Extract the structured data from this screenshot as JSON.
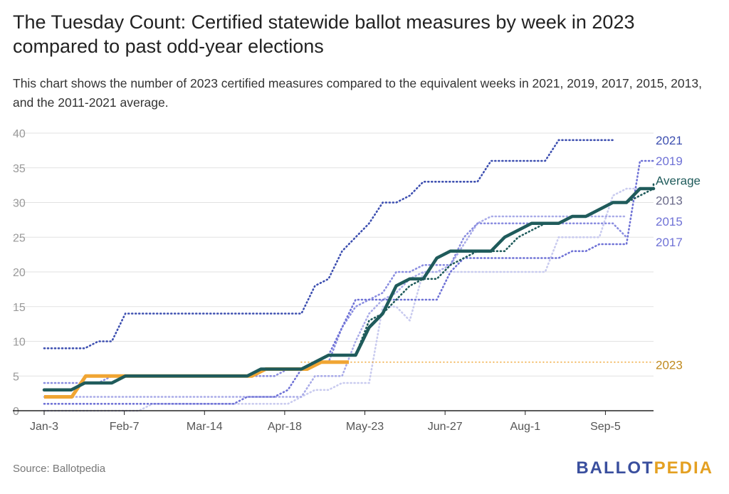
{
  "header": {
    "title": "The Tuesday Count: Certified statewide ballot measures by week in 2023 compared to past odd-year elections",
    "subtitle": "This chart shows the number of 2023 certified measures compared to the equivalent weeks in 2021, 2019, 2017, 2015, 2013, and the 2011-2021 average."
  },
  "footer": {
    "source": "Source: Ballotpedia",
    "brand_part1": "BALLOT",
    "brand_part2": "PEDIA"
  },
  "colors": {
    "s2021": "#3d4fb0",
    "s2019": "#6f72d6",
    "s2017": "#8a8de0",
    "s2015": "#a9abe8",
    "s2013": "#c9cbef",
    "average": "#1f5b5b",
    "s2023": "#f0a533",
    "s2023_label": "#c08a1e",
    "grid": "#e2e2e2",
    "axis": "#222222"
  },
  "chart_data": {
    "type": "line",
    "title": "The Tuesday Count: Certified statewide ballot measures by week in 2023 compared to past odd-year elections",
    "x_tick_labels": [
      "Jan-3",
      "Feb-7",
      "Mar-14",
      "Apr-18",
      "May-23",
      "Jun-27",
      "Aug-1",
      "Sep-5"
    ],
    "x_tick_weeks": [
      0,
      5,
      10,
      15,
      20,
      25,
      30,
      35
    ],
    "x_range_weeks": [
      0,
      38
    ],
    "ylim": [
      0,
      40
    ],
    "yticks": [
      0,
      5,
      10,
      15,
      20,
      25,
      30,
      35,
      40
    ],
    "grid": true,
    "legend": "end-of-line labels (right)",
    "series": [
      {
        "name": "2021",
        "style": "dotted",
        "colorKey": "s2021",
        "values": [
          9,
          9,
          9,
          9,
          10,
          10,
          14,
          14,
          14,
          14,
          14,
          14,
          14,
          14,
          14,
          14,
          14,
          14,
          14,
          14,
          18,
          19,
          23,
          25,
          27,
          30,
          30,
          31,
          33,
          33,
          33,
          33,
          33,
          36,
          36,
          36,
          36,
          36,
          39,
          39,
          39,
          39,
          39
        ]
      },
      {
        "name": "2019",
        "style": "dotted",
        "colorKey": "s2019",
        "values": [
          1,
          1,
          1,
          1,
          1,
          1,
          1,
          1,
          1,
          1,
          1,
          1,
          1,
          1,
          1,
          2,
          2,
          2,
          3,
          6,
          7,
          8,
          12,
          16,
          16,
          16,
          16,
          16,
          16,
          16,
          20,
          22,
          22,
          22,
          22,
          22,
          22,
          22,
          22,
          23,
          23,
          24,
          24,
          24,
          36,
          36
        ]
      },
      {
        "name": "2017",
        "style": "dotted",
        "colorKey": "s2017",
        "values": [
          4,
          4,
          4,
          4,
          4,
          5,
          5,
          5,
          5,
          5,
          5,
          5,
          5,
          5,
          5,
          5,
          5,
          5,
          6,
          6,
          7,
          7,
          12,
          15,
          16,
          17,
          20,
          20,
          21,
          21,
          21,
          25,
          27,
          27,
          27,
          27,
          27,
          27,
          27,
          27,
          27,
          27,
          27,
          25
        ]
      },
      {
        "name": "2015",
        "style": "dotted",
        "colorKey": "s2015",
        "values": [
          2,
          2,
          2,
          2,
          2,
          2,
          2,
          2,
          2,
          2,
          2,
          2,
          2,
          2,
          2,
          2,
          2,
          2,
          2,
          2,
          5,
          5,
          5,
          10,
          14,
          16,
          17,
          19,
          20,
          20,
          21,
          24,
          27,
          28,
          28,
          28,
          28,
          28,
          28,
          28,
          28,
          28,
          28,
          28
        ]
      },
      {
        "name": "2013",
        "style": "dotted",
        "colorKey": "s2013",
        "values": [
          0,
          0,
          0,
          0,
          0,
          0,
          0,
          0,
          1,
          1,
          1,
          1,
          1,
          1,
          1,
          1,
          1,
          1,
          1,
          2,
          3,
          3,
          4,
          4,
          4,
          15,
          15,
          13,
          20,
          20,
          20,
          20,
          20,
          20,
          20,
          20,
          20,
          20,
          25,
          25,
          25,
          25,
          31,
          32,
          32
        ]
      },
      {
        "name": "Average",
        "style": "dotted",
        "colorKey": "average",
        "values": [
          3,
          3,
          3,
          4,
          4,
          4,
          5,
          5,
          5,
          5,
          5,
          5,
          5,
          5,
          5,
          5,
          6,
          6,
          6,
          6,
          7,
          8,
          8,
          8,
          13,
          14,
          16,
          18,
          19,
          19,
          21,
          22,
          23,
          23,
          23,
          25,
          26,
          27,
          27,
          28,
          28,
          29,
          30,
          30,
          31,
          32,
          33
        ]
      },
      {
        "name": "2023",
        "style": "dashed-reference",
        "colorKey": "s2023",
        "values": [
          2,
          2,
          2,
          5,
          5,
          5,
          5,
          5,
          5,
          5,
          5,
          5,
          5,
          5,
          5,
          5,
          6,
          6,
          6,
          6,
          7,
          7,
          7
        ]
      },
      {
        "name": "2023 certified (solid)",
        "style": "solid",
        "colorKey": "average",
        "values": [
          3,
          3,
          3,
          4,
          4,
          4,
          5,
          5,
          5,
          5,
          5,
          5,
          5,
          5,
          5,
          5,
          6,
          6,
          6,
          6,
          7,
          8,
          8,
          8,
          12,
          14,
          18,
          19,
          19,
          22,
          23,
          23,
          23,
          23,
          25,
          26,
          27,
          27,
          27,
          28,
          28,
          29,
          30,
          30,
          32,
          32
        ]
      }
    ],
    "end_labels": [
      "2021",
      "2019",
      "Average",
      "2013",
      "2015",
      "2017",
      "2023"
    ]
  }
}
